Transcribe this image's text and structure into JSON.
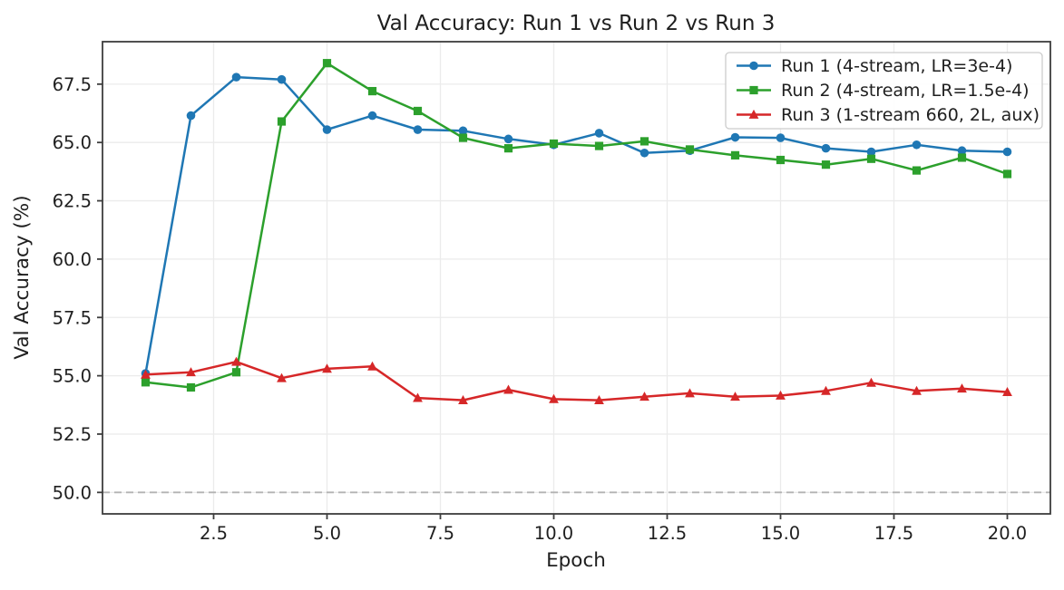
{
  "chart_data": {
    "type": "line",
    "title": "Val Accuracy: Run 1 vs Run 2 vs Run 3",
    "xlabel": "Epoch",
    "ylabel": "Val Accuracy (%)",
    "x": [
      1,
      2,
      3,
      4,
      5,
      6,
      7,
      8,
      9,
      10,
      11,
      12,
      13,
      14,
      15,
      16,
      17,
      18,
      19,
      20
    ],
    "series": [
      {
        "name": "Run 1 (4-stream, LR=3e-4)",
        "color": "#1f77b4",
        "marker": "circle",
        "values": [
          55.1,
          66.15,
          67.8,
          67.7,
          65.55,
          66.15,
          65.55,
          65.5,
          65.15,
          64.9,
          65.4,
          64.55,
          64.65,
          65.22,
          65.2,
          64.75,
          64.6,
          64.9,
          64.65,
          64.6
        ]
      },
      {
        "name": "Run 2 (4-stream, LR=1.5e-4)",
        "color": "#2ca02c",
        "marker": "square",
        "values": [
          54.72,
          54.5,
          55.15,
          65.9,
          68.4,
          67.2,
          66.35,
          65.2,
          64.75,
          64.95,
          64.85,
          65.05,
          64.7,
          64.45,
          64.25,
          64.05,
          64.3,
          63.8,
          64.35,
          63.65
        ]
      },
      {
        "name": "Run 3 (1-stream 660, 2L, aux)",
        "color": "#d62728",
        "marker": "triangle",
        "values": [
          55.05,
          55.15,
          55.6,
          54.9,
          55.3,
          55.4,
          54.05,
          53.95,
          54.4,
          54.0,
          53.95,
          54.1,
          54.25,
          54.1,
          54.15,
          54.35,
          54.7,
          54.35,
          54.45,
          54.3
        ]
      }
    ],
    "xticks": [
      2.5,
      5.0,
      7.5,
      10.0,
      12.5,
      15.0,
      17.5,
      20.0
    ],
    "xtick_labels": [
      "2.5",
      "5.0",
      "7.5",
      "10.0",
      "12.5",
      "15.0",
      "17.5",
      "20.0"
    ],
    "yticks": [
      50.0,
      52.5,
      55.0,
      57.5,
      60.0,
      62.5,
      65.0,
      67.5
    ],
    "ytick_labels": [
      "50.0",
      "52.5",
      "55.0",
      "57.5",
      "60.0",
      "62.5",
      "65.0",
      "67.5"
    ],
    "xlim": [
      0.05,
      20.95
    ],
    "ylim": [
      49.08,
      69.32
    ],
    "grid": true,
    "legend_position": "upper right",
    "reference_line": {
      "y": 50.0,
      "style": "dashed"
    }
  },
  "colors": {
    "background": "#ffffff",
    "grid": "#ebebeb",
    "spine": "#3d3d3d",
    "reference_line": "#b3b3b3",
    "text": "#1f1f1f",
    "legend_border": "#cccccc",
    "legend_background": "#ffffff"
  }
}
